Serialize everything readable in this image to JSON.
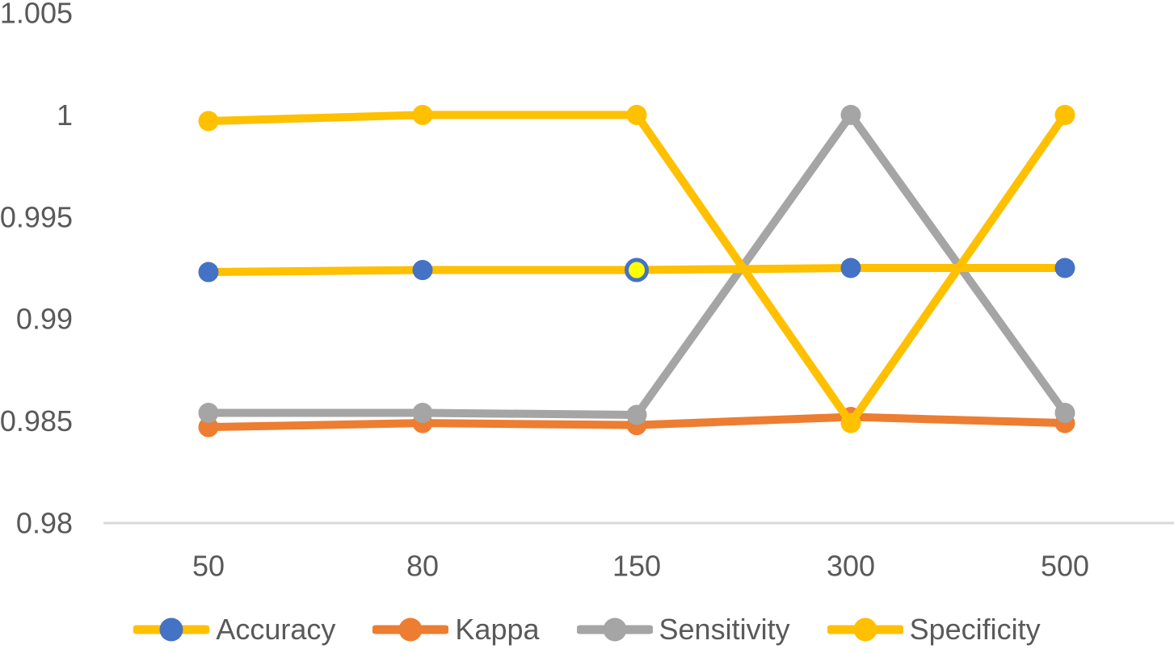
{
  "colors": {
    "background": "#FFFFFF",
    "axis_text": "#595959",
    "baseline_gridline": "#D9D9D9",
    "excel_blue": "#4472C4",
    "excel_orange": "#ED7D31",
    "excel_gray": "#A5A5A5",
    "excel_gold": "#FFC000",
    "highlight_yellow": "#FFFF00"
  },
  "chart_data": {
    "type": "line",
    "title": "",
    "xlabel": "",
    "ylabel": "",
    "categories": [
      "50",
      "80",
      "150",
      "300",
      "500"
    ],
    "y_ticks": [
      "1.005",
      "1",
      "0.995",
      "0.99",
      "0.985",
      "0.98"
    ],
    "y_tick_values": [
      1.005,
      1.0,
      0.995,
      0.99,
      0.985,
      0.98
    ],
    "ylim": [
      0.98,
      1.005
    ],
    "grid": "no gridlines except light category baseline at y=0.98",
    "legend_position": "bottom-center",
    "series": [
      {
        "name": "Accuracy",
        "line_color": "#FFC000",
        "marker_color": "#4472C4",
        "values": [
          0.9923,
          0.9924,
          0.9924,
          0.9925,
          0.9925
        ]
      },
      {
        "name": "Kappa",
        "line_color": "#ED7D31",
        "marker_color": "#ED7D31",
        "values": [
          0.9847,
          0.9849,
          0.9848,
          0.9852,
          0.9849
        ]
      },
      {
        "name": "Sensitivity",
        "line_color": "#A5A5A5",
        "marker_color": "#A5A5A5",
        "values": [
          0.9854,
          0.9854,
          0.9853,
          1.0,
          0.9854
        ]
      },
      {
        "name": "Specificity",
        "line_color": "#FFC000",
        "marker_color": "#FFC000",
        "values": [
          0.9997,
          1.0,
          1.0,
          0.9849,
          1.0
        ]
      }
    ],
    "draw_order": [
      "Kappa",
      "Sensitivity",
      "Accuracy",
      "Specificity"
    ],
    "highlight_point": {
      "series": "Accuracy",
      "category": "150",
      "fill": "#FFFF00",
      "ring_color": "#4472C4"
    }
  }
}
